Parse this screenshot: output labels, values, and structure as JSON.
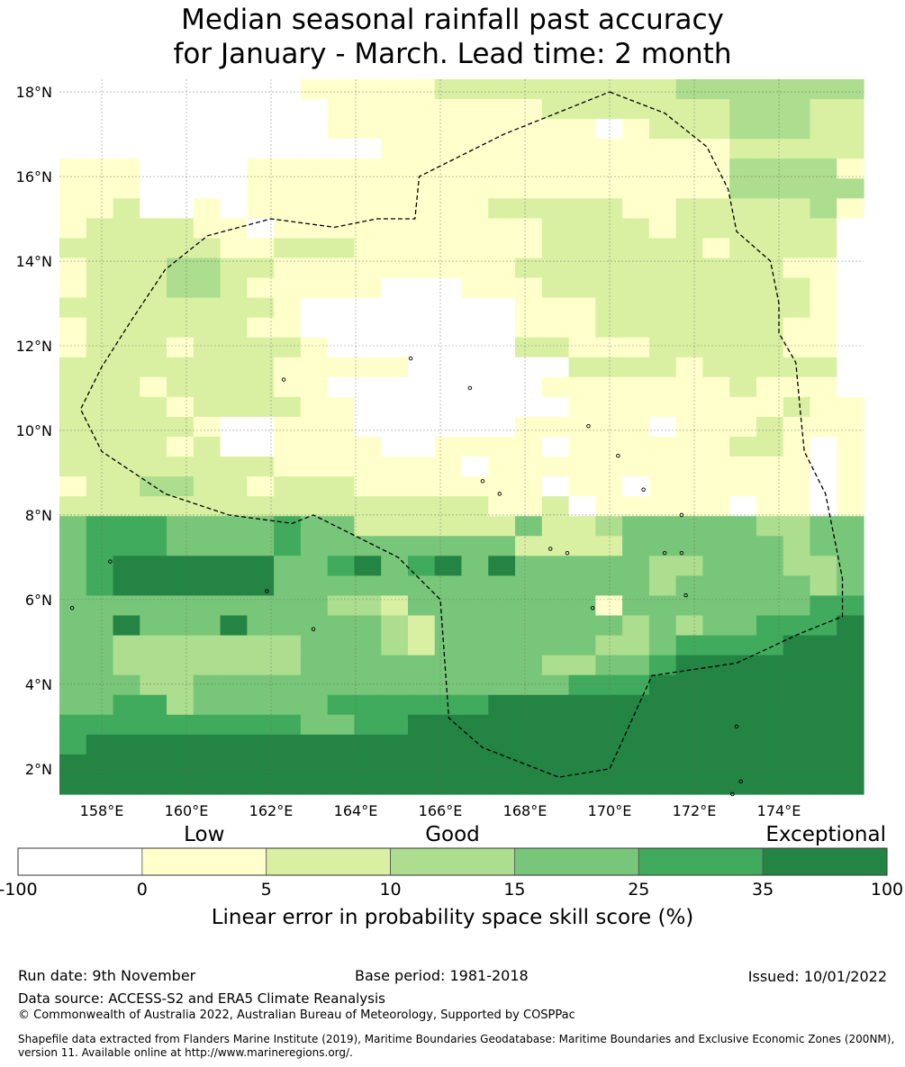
{
  "title_line1": "Median seasonal rainfall past accuracy",
  "title_line2": "for January - March. Lead time: 2 month",
  "map": {
    "lon_range": [
      157,
      176
    ],
    "lat_range": [
      1.4,
      18.3
    ],
    "lat_ticks": [
      {
        "value": 18,
        "label": "18°N"
      },
      {
        "value": 16,
        "label": "16°N"
      },
      {
        "value": 14,
        "label": "14°N"
      },
      {
        "value": 12,
        "label": "12°N"
      },
      {
        "value": 10,
        "label": "10°N"
      },
      {
        "value": 8,
        "label": "8°N"
      },
      {
        "value": 6,
        "label": "6°N"
      },
      {
        "value": 4,
        "label": "4°N"
      },
      {
        "value": 2,
        "label": "2°N"
      }
    ],
    "lon_ticks": [
      {
        "value": 158,
        "label": "158°E"
      },
      {
        "value": 160,
        "label": "160°E"
      },
      {
        "value": 162,
        "label": "162°E"
      },
      {
        "value": 164,
        "label": "164°E"
      },
      {
        "value": 166,
        "label": "166°E"
      },
      {
        "value": 168,
        "label": "168°E"
      },
      {
        "value": 170,
        "label": "170°E"
      },
      {
        "value": 172,
        "label": "172°E"
      },
      {
        "value": 174,
        "label": "174°E"
      }
    ],
    "grid": true,
    "cell_colors": [
      "#ffffff",
      "#ffffcc",
      "#d9f0a3",
      "#addd8e",
      "#78c679",
      "#41ab5d",
      "#238443"
    ],
    "eez_boundary": [
      [
        170.0,
        18.0
      ],
      [
        171.3,
        17.5
      ],
      [
        172.3,
        16.7
      ],
      [
        172.8,
        15.7
      ],
      [
        173.0,
        14.7
      ],
      [
        173.8,
        14.0
      ],
      [
        174.0,
        13.0
      ],
      [
        174.0,
        12.3
      ],
      [
        174.4,
        11.6
      ],
      [
        174.5,
        10.5
      ],
      [
        174.6,
        9.5
      ],
      [
        175.1,
        8.5
      ],
      [
        175.3,
        7.5
      ],
      [
        175.5,
        6.5
      ],
      [
        175.5,
        5.6
      ],
      [
        174.5,
        5.2
      ],
      [
        173.0,
        4.5
      ],
      [
        171.0,
        4.2
      ],
      [
        170.0,
        2.0
      ],
      [
        168.8,
        1.8
      ],
      [
        167.0,
        2.5
      ],
      [
        166.2,
        3.2
      ],
      [
        166.0,
        6.0
      ],
      [
        165.0,
        7.0
      ],
      [
        163.0,
        8.0
      ],
      [
        162.5,
        7.8
      ],
      [
        161.0,
        8.0
      ],
      [
        159.5,
        8.5
      ],
      [
        158.0,
        9.5
      ],
      [
        157.5,
        10.5
      ],
      [
        158.0,
        11.5
      ],
      [
        158.7,
        12.6
      ],
      [
        159.5,
        13.8
      ],
      [
        160.5,
        14.6
      ],
      [
        162.0,
        15.0
      ],
      [
        163.5,
        14.8
      ],
      [
        164.5,
        15.0
      ],
      [
        165.4,
        15.0
      ],
      [
        165.5,
        16.0
      ],
      [
        167.5,
        17.0
      ]
    ]
  },
  "legend": {
    "categories": [
      {
        "label": "Low",
        "center": 1.5
      },
      {
        "label": "Good",
        "center": 3.5
      },
      {
        "label": "Exceptional",
        "center": 6.5
      }
    ],
    "bins": [
      {
        "from": -100,
        "to": 0,
        "color": "#ffffff"
      },
      {
        "from": 0,
        "to": 5,
        "color": "#ffffcc"
      },
      {
        "from": 5,
        "to": 10,
        "color": "#d9f0a3"
      },
      {
        "from": 10,
        "to": 15,
        "color": "#addd8e"
      },
      {
        "from": 15,
        "to": 25,
        "color": "#78c679"
      },
      {
        "from": 25,
        "to": 35,
        "color": "#41ab5d"
      },
      {
        "from": 35,
        "to": 100,
        "color": "#238443"
      }
    ],
    "tick_labels": [
      "-100",
      "0",
      "5",
      "10",
      "15",
      "25",
      "35",
      "100"
    ],
    "label": "Linear error in probability space skill score (%)"
  },
  "footer": {
    "run_date": "Run date: 9th November",
    "base_period": "Base period: 1981-2018",
    "issued": "Issued: 10/01/2022",
    "data_source": "Data source: ACCESS-S2 and ERA5 Climate Reanalysis",
    "copyright": "© Commonwealth of Australia 2022, Australian Bureau of Meteorology, Supported by COSPPac",
    "shapefile": "Shapefile data extracted from Flanders Marine Institute (2019), Maritime Boundaries Geodatabase: Maritime Boundaries and Exclusive Economic Zones (200NM), version 11. Available online at http://www.marineregions.org/."
  }
}
